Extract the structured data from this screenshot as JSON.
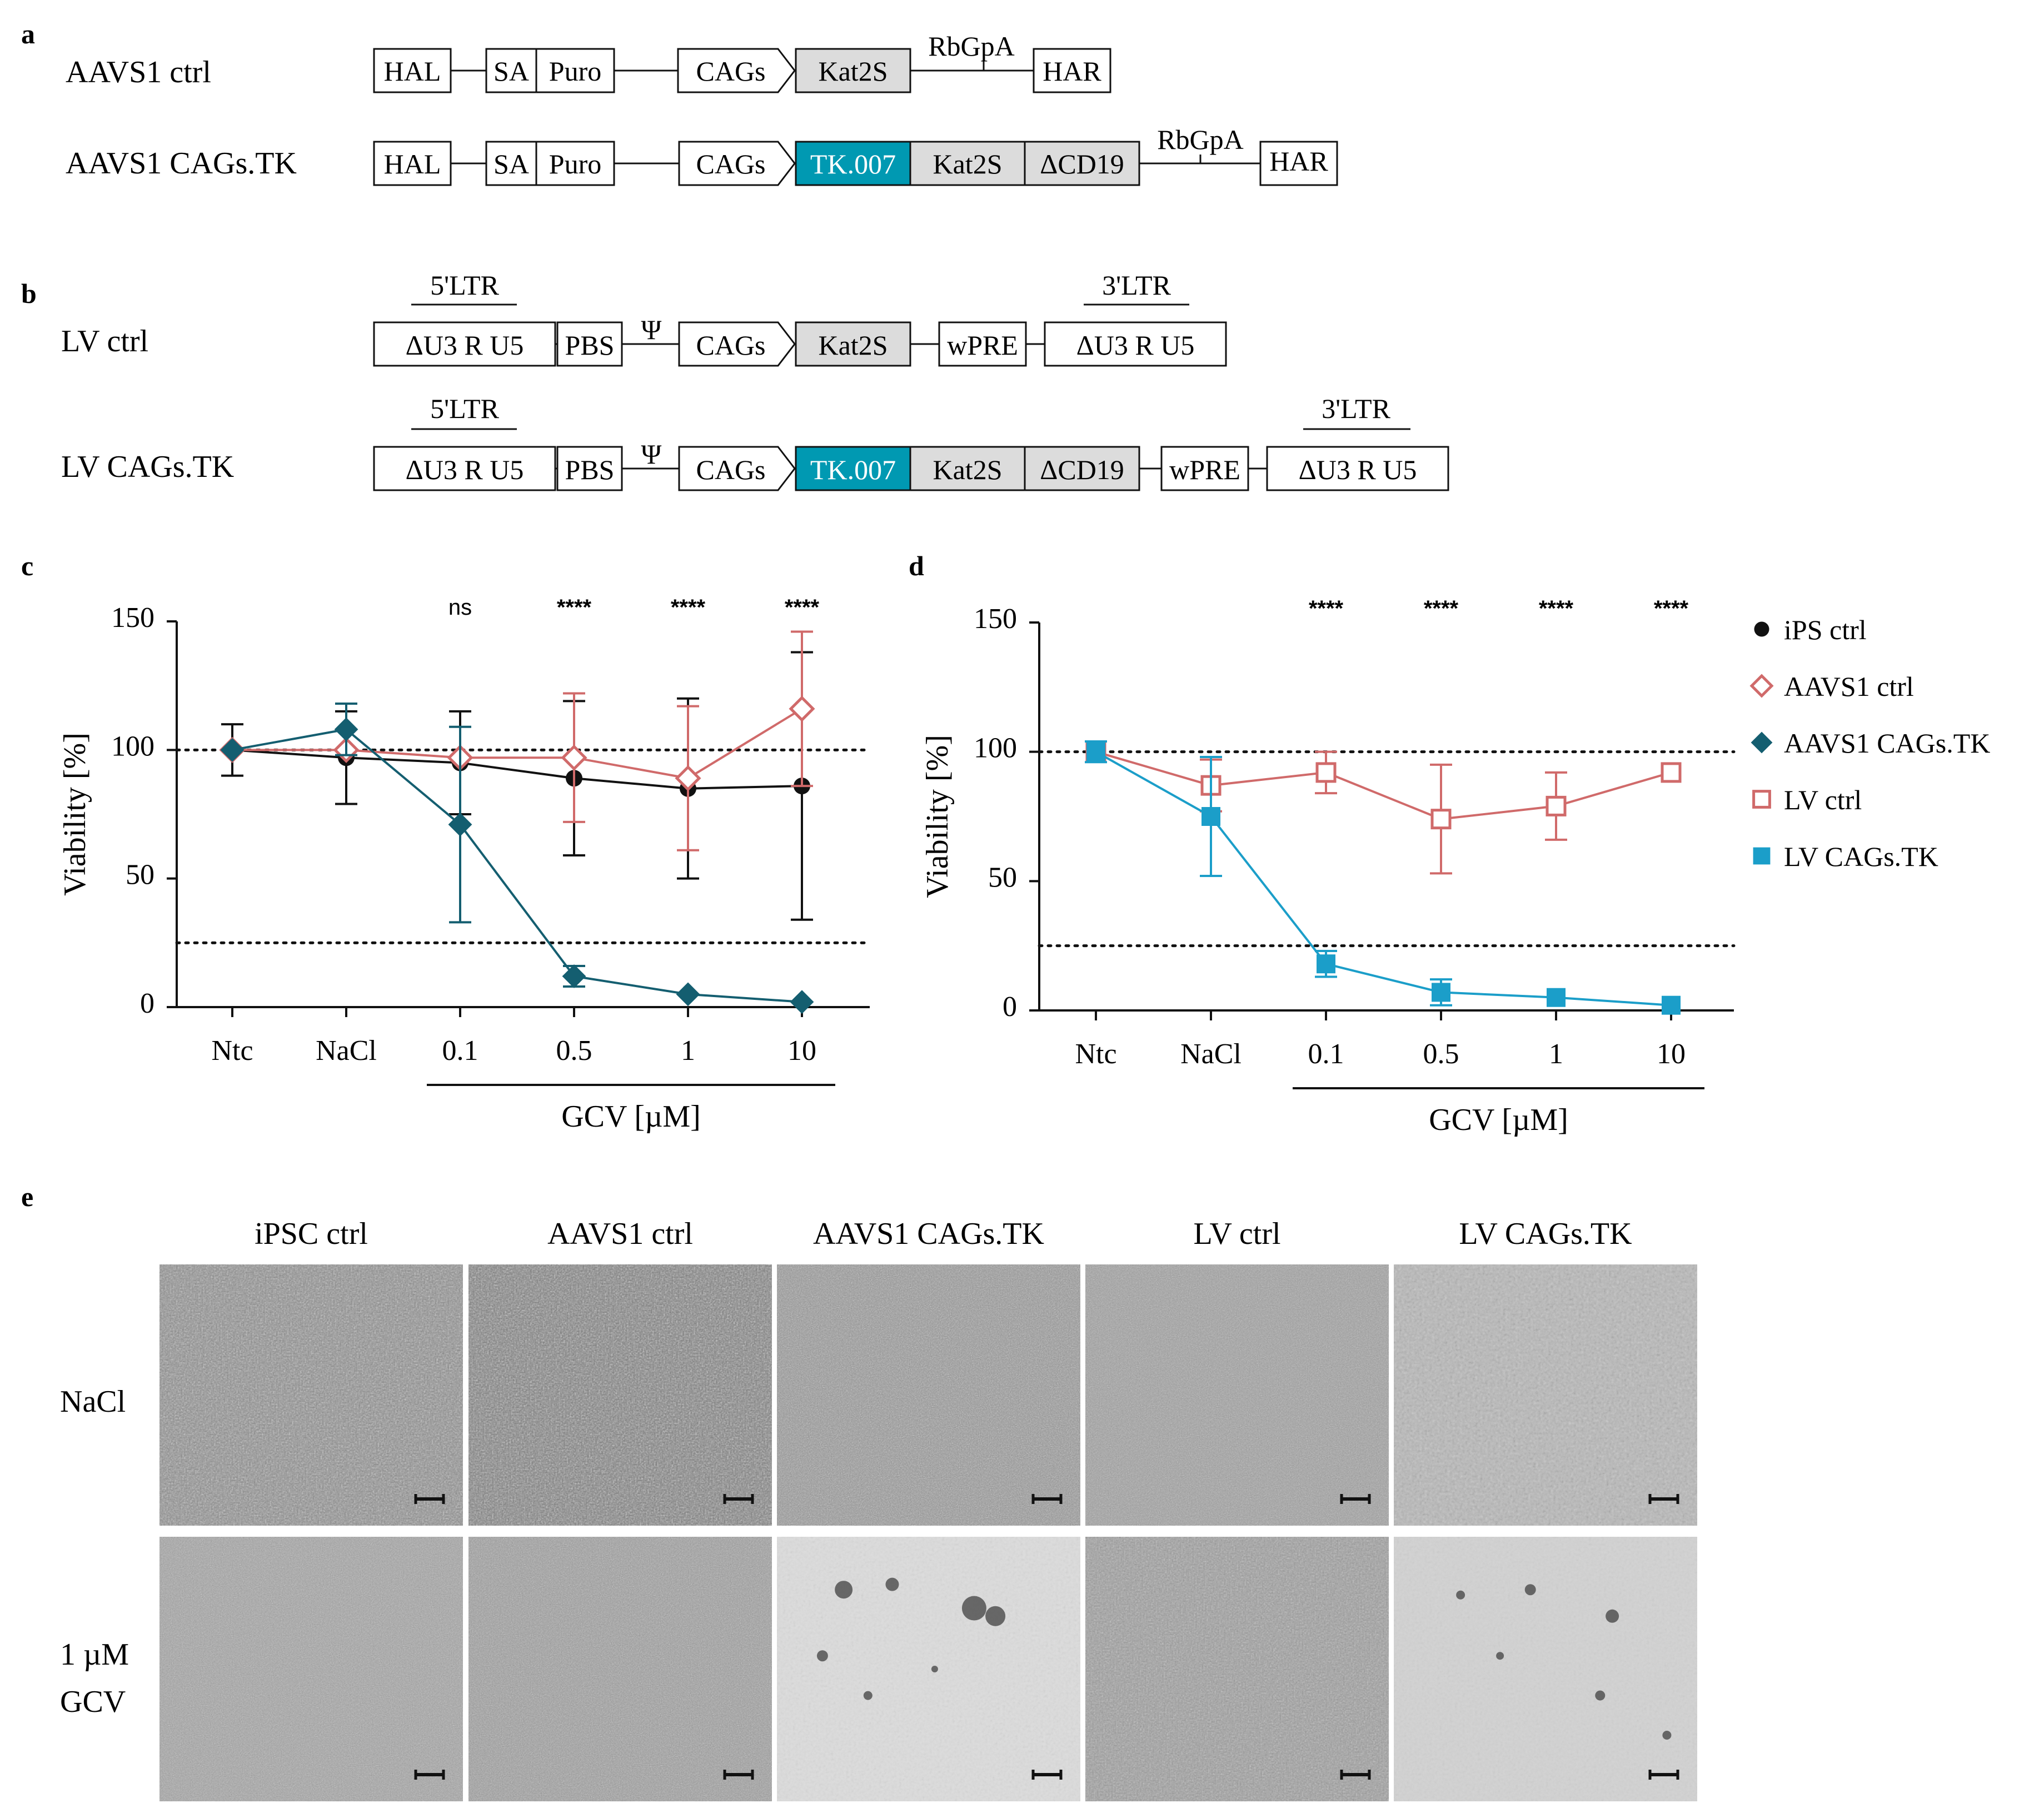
{
  "panels": {
    "a": "a",
    "b": "b",
    "c": "c",
    "d": "d",
    "e": "e"
  },
  "constructs": {
    "aavs1_ctrl": {
      "label": "AAVS1 ctrl",
      "elements": [
        "HAL",
        "SA",
        "Puro",
        "CAGs",
        "Kat2S",
        "RbGpA",
        "HAR"
      ]
    },
    "aavs1_tk": {
      "label": "AAVS1 CAGs.TK",
      "elements": [
        "HAL",
        "SA",
        "Puro",
        "CAGs",
        "TK.007",
        "Kat2S",
        "ΔCD19",
        "RbGpA",
        "HAR"
      ]
    },
    "lv_ctrl": {
      "label": "LV ctrl",
      "ltr5": "5'LTR",
      "ltr3": "3'LTR",
      "u3r_u5": "ΔU3   R   U5",
      "pbs": "PBS",
      "psi": "Ψ",
      "cags": "CAGs",
      "kat2s": "Kat2S",
      "wpre": "wPRE"
    },
    "lv_tk": {
      "label": "LV CAGs.TK",
      "ltr5": "5'LTR",
      "ltr3": "3'LTR",
      "u3r_u5": "ΔU3   R   U5",
      "pbs": "PBS",
      "psi": "Ψ",
      "cags": "CAGs",
      "tk": "TK.007",
      "kat2s": "Kat2S",
      "cd19": "ΔCD19",
      "wpre": "wPRE"
    }
  },
  "colors": {
    "teal": "#0099b2",
    "dark_teal": "#145e70",
    "light_blue": "#1b9ec9",
    "salmon": "#d06a6a",
    "gray_box": "#dcdcdc",
    "black": "#111111"
  },
  "chart_data": [
    {
      "type": "line",
      "panel": "c",
      "ylabel": "Viability [%]",
      "xgroup_label": "GCV [µM]",
      "categories": [
        "Ntc",
        "NaCl",
        "0.1",
        "0.5",
        "1",
        "10"
      ],
      "ylim": [
        0,
        150
      ],
      "yticks": [
        "0",
        "50",
        "100",
        "150"
      ],
      "reference_lines": [
        100,
        25
      ],
      "significance": [
        "",
        "",
        "ns",
        "****",
        "****",
        "****"
      ],
      "series": [
        {
          "name": "iPS ctrl",
          "marker": "circle",
          "values": [
            100,
            97,
            95,
            89,
            85,
            86
          ],
          "err": [
            10,
            18,
            20,
            30,
            35,
            52
          ]
        },
        {
          "name": "AAVS1 ctrl",
          "marker": "diamond-open",
          "values": [
            100,
            100,
            97,
            97,
            89,
            116
          ],
          "err": [
            0,
            0,
            0,
            25,
            28,
            30
          ]
        },
        {
          "name": "AAVS1 CAGs.TK",
          "marker": "diamond",
          "values": [
            100,
            108,
            71,
            12,
            5,
            2
          ],
          "err": [
            0,
            10,
            38,
            4,
            0,
            0
          ]
        }
      ]
    },
    {
      "type": "line",
      "panel": "d",
      "ylabel": "Viability [%]",
      "xgroup_label": "GCV [µM]",
      "categories": [
        "Ntc",
        "NaCl",
        "0.1",
        "0.5",
        "1",
        "10"
      ],
      "ylim": [
        0,
        150
      ],
      "yticks": [
        "0",
        "50",
        "100",
        "150"
      ],
      "reference_lines": [
        100,
        25
      ],
      "significance": [
        "",
        "",
        "****",
        "****",
        "****",
        "****"
      ],
      "series": [
        {
          "name": "LV ctrl",
          "marker": "square-open",
          "values": [
            100,
            87,
            92,
            74,
            79,
            92
          ],
          "err": [
            0,
            10,
            8,
            21,
            13,
            0
          ]
        },
        {
          "name": "LV CAGs.TK",
          "marker": "square",
          "values": [
            100,
            75,
            18,
            7,
            5,
            2
          ],
          "err": [
            4,
            23,
            5,
            5,
            0,
            0
          ]
        }
      ]
    }
  ],
  "legend": [
    {
      "label": "iPS ctrl",
      "marker": "circle"
    },
    {
      "label": "AAVS1 ctrl",
      "marker": "diamond-open"
    },
    {
      "label": "AAVS1 CAGs.TK",
      "marker": "diamond"
    },
    {
      "label": "LV ctrl",
      "marker": "square-open"
    },
    {
      "label": "LV CAGs.TK",
      "marker": "square"
    }
  ],
  "micrographs": {
    "columns": [
      "iPSC ctrl",
      "AAVS1 ctrl",
      "AAVS1 CAGs.TK",
      "LV ctrl",
      "LV CAGs.TK"
    ],
    "rows": [
      "NaCl",
      "1 µM",
      "GCV"
    ]
  }
}
